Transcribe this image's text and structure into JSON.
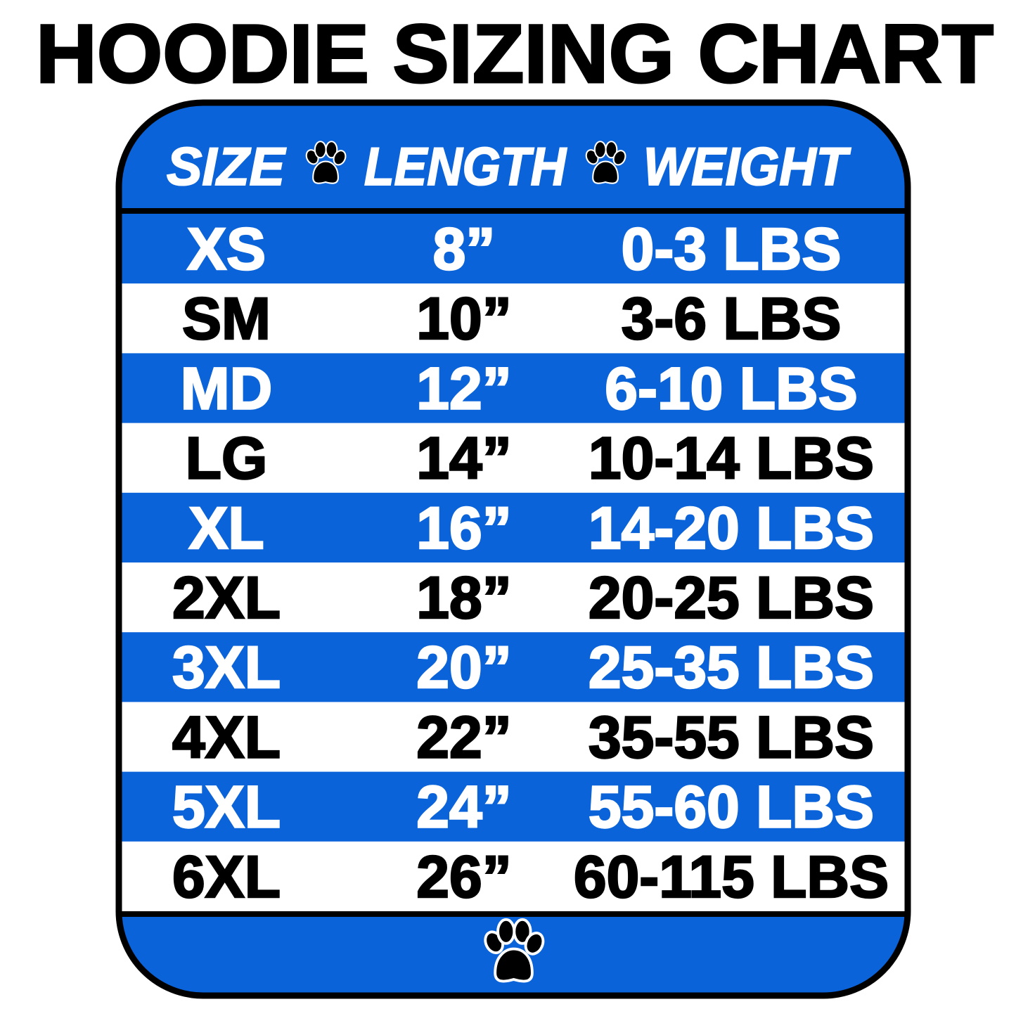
{
  "title": "HOODIE SIZING CHART",
  "header": {
    "col1": "SIZE",
    "col2": "LENGTH",
    "col3": "WEIGHT",
    "separator_icon": "paw-icon"
  },
  "rows": [
    {
      "size": "XS",
      "length": "8”",
      "weight": "0-3 LBS"
    },
    {
      "size": "SM",
      "length": "10”",
      "weight": "3-6 LBS"
    },
    {
      "size": "MD",
      "length": "12”",
      "weight": "6-10 LBS"
    },
    {
      "size": "LG",
      "length": "14”",
      "weight": "10-14 LBS"
    },
    {
      "size": "XL",
      "length": "16”",
      "weight": "14-20 LBS"
    },
    {
      "size": "2XL",
      "length": "18”",
      "weight": "20-25 LBS"
    },
    {
      "size": "3XL",
      "length": "20”",
      "weight": "25-35 LBS"
    },
    {
      "size": "4XL",
      "length": "22”",
      "weight": "35-55 LBS"
    },
    {
      "size": "5XL",
      "length": "24”",
      "weight": "55-60 LBS"
    },
    {
      "size": "6XL",
      "length": "26”",
      "weight": "60-115 LBS"
    }
  ],
  "footer": {
    "icon": "paw-icon"
  },
  "colors": {
    "blue": "#0b63d9",
    "white": "#ffffff",
    "black": "#000000"
  }
}
